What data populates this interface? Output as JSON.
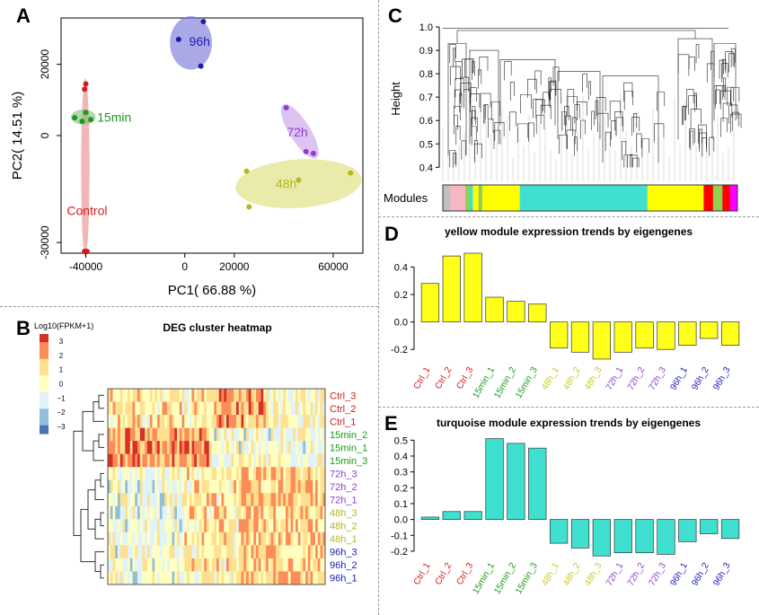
{
  "panel_labels": {
    "a": "A",
    "b": "B",
    "c": "C",
    "d": "D",
    "e": "E"
  },
  "chart_data": [
    {
      "id": "pca",
      "type": "scatter",
      "xlabel": "PC1( 66.88 %)",
      "ylabel": "PC2( 14.51 %)",
      "xlim": [
        -50000,
        72000
      ],
      "ylim": [
        -33000,
        33000
      ],
      "xticks": [
        -40000,
        0,
        20000,
        60000
      ],
      "xtick_labels": [
        "-40000",
        "0",
        "20000",
        "60000"
      ],
      "yticks": [
        -30000,
        0,
        20000
      ],
      "ytick_labels": [
        "-30000",
        "0",
        "20000"
      ],
      "groups": [
        {
          "name": "Control",
          "color": "#d7191c",
          "fill": "#e98585",
          "points": [
            [
              -40000,
              14500
            ],
            [
              -40500,
              13000
            ],
            [
              -40500,
              -32500
            ],
            [
              -39500,
              -32500
            ]
          ],
          "ellipse": {
            "cx": -40200,
            "cy": -9000,
            "rx": 1700,
            "ry": 25000,
            "angle": 0
          }
        },
        {
          "name": "15min",
          "color": "#1a9a1a",
          "fill": "#7cbd78",
          "points": [
            [
              -44500,
              5000
            ],
            [
              -40000,
              6500
            ],
            [
              -38000,
              4500
            ],
            [
              -41500,
              4000
            ]
          ],
          "ellipse": {
            "cx": -41000,
            "cy": 5200,
            "rx": 5000,
            "ry": 2100,
            "angle": 0
          }
        },
        {
          "name": "96h",
          "color": "#1b1bb5",
          "fill": "#7070d8",
          "points": [
            [
              -2500,
              27000
            ],
            [
              7500,
              32000
            ],
            [
              6500,
              19500
            ]
          ],
          "ellipse": {
            "cx": 2500,
            "cy": 26000,
            "rx": 8500,
            "ry": 7500,
            "angle": 0
          }
        },
        {
          "name": "72h",
          "color": "#8c3fcf",
          "fill": "#c49be8",
          "points": [
            [
              41000,
              7800
            ],
            [
              49000,
              -4500
            ],
            [
              52000,
              -5000
            ]
          ],
          "ellipse": {
            "cx": 46500,
            "cy": 1200,
            "rx": 4200,
            "ry": 8800,
            "angle": -32
          }
        },
        {
          "name": "48h",
          "color": "#b8b81a",
          "fill": "#dcdc73",
          "points": [
            [
              25000,
              -10000
            ],
            [
              67000,
              -10500
            ],
            [
              26000,
              -20000
            ],
            [
              46000,
              -12500
            ]
          ],
          "ellipse": {
            "cx": 46000,
            "cy": -13500,
            "rx": 25500,
            "ry": 6800,
            "angle": -4
          }
        }
      ],
      "group_labels": [
        {
          "text": "Control",
          "x": -39500,
          "y": -21000,
          "color": "#d7191c"
        },
        {
          "text": "15min",
          "x": -28500,
          "y": 5200,
          "color": "#1a9a1a"
        },
        {
          "text": "96h",
          "x": 6000,
          "y": 26500,
          "color": "#1b1bb5"
        },
        {
          "text": "72h",
          "x": 45500,
          "y": 1000,
          "color": "#8c3fcf"
        },
        {
          "text": "48h",
          "x": 41000,
          "y": -13500,
          "color": "#b8b81a"
        }
      ]
    },
    {
      "id": "heatmap",
      "type": "heatmap",
      "title": "DEG cluster heatmap",
      "legend_title": "Log10(FPKM+1)",
      "legend_ticks": [
        "3",
        "2",
        "1",
        "0",
        "−1",
        "−2",
        "−3"
      ],
      "scale_colors": [
        "#d73027",
        "#fc8d59",
        "#fee090",
        "#ffffbf",
        "#e0f3f8",
        "#91bfdb",
        "#4575b4"
      ],
      "rows": [
        {
          "label": "Ctrl_3",
          "color": "#d7191c"
        },
        {
          "label": "Ctrl_2",
          "color": "#d7191c"
        },
        {
          "label": "Ctrl_1",
          "color": "#d7191c"
        },
        {
          "label": "15min_2",
          "color": "#1a9a1a"
        },
        {
          "label": "15min_1",
          "color": "#1a9a1a"
        },
        {
          "label": "15min_3",
          "color": "#1a9a1a"
        },
        {
          "label": "72h_3",
          "color": "#8c3fcf"
        },
        {
          "label": "72h_2",
          "color": "#8c3fcf"
        },
        {
          "label": "72h_1",
          "color": "#8c3fcf"
        },
        {
          "label": "48h_3",
          "color": "#b8b81a"
        },
        {
          "label": "48h_2",
          "color": "#b8b81a"
        },
        {
          "label": "48h_1",
          "color": "#b8b81a"
        },
        {
          "label": "96h_3",
          "color": "#1b1bb5"
        },
        {
          "label": "96h_2",
          "color": "#1b1bb5"
        },
        {
          "label": "96h_1",
          "color": "#1b1bb5"
        }
      ]
    },
    {
      "id": "dendrogram",
      "type": "dendrogram",
      "ylabel": "Height",
      "yticks": [
        0.4,
        0.5,
        0.6,
        0.7,
        0.8,
        0.9,
        1.0
      ],
      "ytick_labels": [
        "0.4",
        "0.5",
        "0.6",
        "0.7",
        "0.8",
        "0.9",
        "1.0"
      ],
      "ylim": [
        0.34,
        1.0
      ],
      "modules_label": "Modules",
      "modules": [
        {
          "color": "#c0c0c0",
          "width": 2
        },
        {
          "color": "#f7b6c2",
          "width": 4
        },
        {
          "color": "#8fd14f",
          "width": 1
        },
        {
          "color": "#40e0d0",
          "width": 1
        },
        {
          "color": "#ffff00",
          "width": 1.5
        },
        {
          "color": "#8fd14f",
          "width": 1
        },
        {
          "color": "#ffff00",
          "width": 10
        },
        {
          "color": "#40e0d0",
          "width": 34
        },
        {
          "color": "#ffff00",
          "width": 15
        },
        {
          "color": "#ff0000",
          "width": 2.5
        },
        {
          "color": "#8fd14f",
          "width": 2.5
        },
        {
          "color": "#ff0000",
          "width": 2
        },
        {
          "color": "#ff00ff",
          "width": 2
        }
      ]
    },
    {
      "id": "yellow_module",
      "type": "bar",
      "title": "yellow module expression trends by eigengenes",
      "bar_color": "#ffff1a",
      "categories": [
        "Ctrl_1",
        "Ctrl_2",
        "Ctrl_3",
        "15min_1",
        "15min_2",
        "15min_3",
        "48h_1",
        "48h_2",
        "48h_3",
        "72h_1",
        "72h_2",
        "72h_3",
        "96h_1",
        "96h_2",
        "96h_3"
      ],
      "category_colors": [
        "#d7191c",
        "#d7191c",
        "#d7191c",
        "#1a9a1a",
        "#1a9a1a",
        "#1a9a1a",
        "#c9c92a",
        "#c9c92a",
        "#c9c92a",
        "#8c3fcf",
        "#8c3fcf",
        "#8c3fcf",
        "#1b1bb5",
        "#1b1bb5",
        "#1b1bb5"
      ],
      "values": [
        0.28,
        0.48,
        0.5,
        0.18,
        0.15,
        0.13,
        -0.19,
        -0.22,
        -0.27,
        -0.22,
        -0.19,
        -0.2,
        -0.17,
        -0.12,
        -0.17
      ],
      "ylim": [
        -0.29,
        0.52
      ],
      "yticks": [
        -0.2,
        0.0,
        0.2,
        0.4
      ],
      "ytick_labels": [
        "-0.2",
        "0.0",
        "0.2",
        "0.4"
      ]
    },
    {
      "id": "turquoise_module",
      "type": "bar",
      "title": "turquoise module expression trends by eigengenes",
      "bar_color": "#40e0d0",
      "categories": [
        "Ctrl_1",
        "Ctrl_2",
        "Ctrl_3",
        "15min_1",
        "15min_2",
        "15min_3",
        "48h_1",
        "48h_2",
        "48h_3",
        "72h_1",
        "72h_2",
        "72h_3",
        "96h_1",
        "96h_2",
        "96h_3"
      ],
      "category_colors": [
        "#d7191c",
        "#d7191c",
        "#d7191c",
        "#1a9a1a",
        "#1a9a1a",
        "#1a9a1a",
        "#c9c92a",
        "#c9c92a",
        "#c9c92a",
        "#8c3fcf",
        "#8c3fcf",
        "#8c3fcf",
        "#1b1bb5",
        "#1b1bb5",
        "#1b1bb5"
      ],
      "values": [
        0.015,
        0.05,
        0.05,
        0.51,
        0.48,
        0.45,
        -0.15,
        -0.18,
        -0.23,
        -0.21,
        -0.21,
        -0.22,
        -0.14,
        -0.09,
        -0.12
      ],
      "ylim": [
        -0.24,
        0.53
      ],
      "yticks": [
        -0.2,
        -0.1,
        0.0,
        0.1,
        0.2,
        0.3,
        0.4,
        0.5
      ],
      "ytick_labels": [
        "-0.2",
        "-0.1",
        "0.0",
        "0.1",
        "0.2",
        "0.3",
        "0.4",
        "0.5"
      ]
    }
  ]
}
